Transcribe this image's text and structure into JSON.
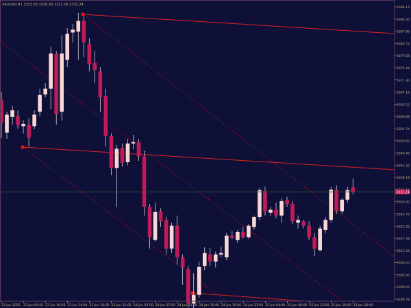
{
  "window": {
    "header_text": "XAUUSD,H1  3333.83 3336.93 3331.26 3332.24"
  },
  "chart_data": {
    "type": "candlestick",
    "title": "",
    "symbol": "XAUUSD",
    "timeframe": "H1",
    "ohlc_header": {
      "open": 3333.83,
      "high": 3336.93,
      "low": 3331.26,
      "close": 3332.24
    },
    "current_price_label": "3332.24",
    "ylim": [
      3294.3,
      3398.3
    ],
    "price_ticks": [
      "3396.14",
      "3392.00",
      "3387.86",
      "3383.72",
      "3379.58",
      "3375.44",
      "3371.30",
      "3367.16",
      "3363.02",
      "3358.88",
      "3354.74",
      "3350.60",
      "3346.46",
      "3342.32",
      "3338.18",
      "3334.04",
      "3329.90",
      "3325.76",
      "3321.62",
      "3317.48",
      "3313.34",
      "3309.20",
      "3305.06",
      "3300.92",
      "3296.78"
    ],
    "time_ticks": [
      "23 Jun 2025",
      "23 Jun 06:00",
      "23 Jun 10:00",
      "23 Jun 14:00",
      "23 Jun 18:00",
      "23 Jun 22:00",
      "24 Jun 03:00",
      "24 Jun 07:00",
      "24 Jun 11:00",
      "24 Jun 15:00",
      "24 Jun 19:00",
      "24 Jun 23:00",
      "25 Jun 04:00",
      "25 Jun 08:00",
      "25 Jun 12:00",
      "25 Jun 16:00",
      "25 Jun 20:00"
    ],
    "candles": [
      {
        "o": 3364.2,
        "h": 3367.0,
        "l": 3350.8,
        "c": 3356.0
      },
      {
        "o": 3352.8,
        "h": 3360.0,
        "l": 3350.6,
        "c": 3359.0
      },
      {
        "o": 3358.2,
        "h": 3362.0,
        "l": 3355.5,
        "c": 3360.5
      },
      {
        "o": 3358.5,
        "h": 3360.5,
        "l": 3354.2,
        "c": 3355.5
      },
      {
        "o": 3355.0,
        "h": 3357.0,
        "l": 3352.5,
        "c": 3355.8
      },
      {
        "o": 3355.5,
        "h": 3357.8,
        "l": 3348.0,
        "c": 3351.0
      },
      {
        "o": 3355.0,
        "h": 3360.5,
        "l": 3354.0,
        "c": 3359.0
      },
      {
        "o": 3360.0,
        "h": 3368.0,
        "l": 3358.5,
        "c": 3365.8
      },
      {
        "o": 3366.0,
        "h": 3370.0,
        "l": 3365.0,
        "c": 3368.0
      },
      {
        "o": 3368.0,
        "h": 3382.5,
        "l": 3361.0,
        "c": 3380.2
      },
      {
        "o": 3380.0,
        "h": 3381.0,
        "l": 3355.5,
        "c": 3359.2
      },
      {
        "o": 3360.0,
        "h": 3386.5,
        "l": 3357.0,
        "c": 3380.2
      },
      {
        "o": 3378.0,
        "h": 3389.0,
        "l": 3375.5,
        "c": 3387.0
      },
      {
        "o": 3387.5,
        "h": 3390.5,
        "l": 3384.0,
        "c": 3388.5
      },
      {
        "o": 3387.8,
        "h": 3394.3,
        "l": 3378.0,
        "c": 3391.5
      },
      {
        "o": 3391.5,
        "h": 3393.0,
        "l": 3379.0,
        "c": 3384.0
      },
      {
        "o": 3383.5,
        "h": 3385.5,
        "l": 3374.0,
        "c": 3376.5
      },
      {
        "o": 3377.0,
        "h": 3381.0,
        "l": 3370.0,
        "c": 3374.5
      },
      {
        "o": 3374.0,
        "h": 3375.5,
        "l": 3360.0,
        "c": 3365.0
      },
      {
        "o": 3365.5,
        "h": 3368.0,
        "l": 3348.0,
        "c": 3351.5
      },
      {
        "o": 3351.5,
        "h": 3352.5,
        "l": 3338.0,
        "c": 3340.5
      },
      {
        "o": 3340.5,
        "h": 3348.5,
        "l": 3327.0,
        "c": 3347.2
      },
      {
        "o": 3347.5,
        "h": 3349.0,
        "l": 3341.0,
        "c": 3342.3
      },
      {
        "o": 3342.5,
        "h": 3350.6,
        "l": 3341.5,
        "c": 3349.0
      },
      {
        "o": 3349.0,
        "h": 3352.0,
        "l": 3347.0,
        "c": 3349.5
      },
      {
        "o": 3349.5,
        "h": 3350.5,
        "l": 3343.0,
        "c": 3344.5
      },
      {
        "o": 3344.5,
        "h": 3346.5,
        "l": 3324.0,
        "c": 3327.0
      },
      {
        "o": 3327.0,
        "h": 3328.0,
        "l": 3312.5,
        "c": 3316.5
      },
      {
        "o": 3315.5,
        "h": 3328.5,
        "l": 3315.0,
        "c": 3325.2
      },
      {
        "o": 3325.5,
        "h": 3326.5,
        "l": 3320.0,
        "c": 3322.0
      },
      {
        "o": 3322.5,
        "h": 3323.5,
        "l": 3310.5,
        "c": 3312.5
      },
      {
        "o": 3312.5,
        "h": 3321.5,
        "l": 3311.0,
        "c": 3320.5
      },
      {
        "o": 3320.5,
        "h": 3324.0,
        "l": 3307.0,
        "c": 3309.5
      },
      {
        "o": 3309.5,
        "h": 3310.5,
        "l": 3300.0,
        "c": 3306.0
      },
      {
        "o": 3305.5,
        "h": 3306.5,
        "l": 3292.0,
        "c": 3293.5
      },
      {
        "o": 3293.5,
        "h": 3304.0,
        "l": 3291.5,
        "c": 3296.5
      },
      {
        "o": 3296.5,
        "h": 3308.0,
        "l": 3295.5,
        "c": 3306.2
      },
      {
        "o": 3306.5,
        "h": 3313.0,
        "l": 3305.0,
        "c": 3311.0
      },
      {
        "o": 3310.5,
        "h": 3312.8,
        "l": 3306.5,
        "c": 3308.0
      },
      {
        "o": 3308.0,
        "h": 3311.5,
        "l": 3306.0,
        "c": 3310.5
      },
      {
        "o": 3310.5,
        "h": 3313.2,
        "l": 3309.5,
        "c": 3311.0
      },
      {
        "o": 3309.5,
        "h": 3318.0,
        "l": 3308.5,
        "c": 3317.0
      },
      {
        "o": 3317.0,
        "h": 3318.6,
        "l": 3315.8,
        "c": 3316.3
      },
      {
        "o": 3315.5,
        "h": 3319.0,
        "l": 3314.5,
        "c": 3318.3
      },
      {
        "o": 3318.3,
        "h": 3320.0,
        "l": 3316.0,
        "c": 3316.5
      },
      {
        "o": 3316.5,
        "h": 3321.0,
        "l": 3316.0,
        "c": 3320.5
      },
      {
        "o": 3320.0,
        "h": 3324.0,
        "l": 3319.0,
        "c": 3323.5
      },
      {
        "o": 3323.5,
        "h": 3333.5,
        "l": 3322.5,
        "c": 3332.8
      },
      {
        "o": 3332.5,
        "h": 3334.0,
        "l": 3324.0,
        "c": 3325.5
      },
      {
        "o": 3325.0,
        "h": 3327.0,
        "l": 3324.0,
        "c": 3326.0
      },
      {
        "o": 3326.0,
        "h": 3328.5,
        "l": 3323.0,
        "c": 3324.0
      },
      {
        "o": 3324.0,
        "h": 3330.0,
        "l": 3321.5,
        "c": 3329.0
      },
      {
        "o": 3329.5,
        "h": 3330.5,
        "l": 3327.0,
        "c": 3328.0
      },
      {
        "o": 3328.0,
        "h": 3329.0,
        "l": 3321.0,
        "c": 3322.0
      },
      {
        "o": 3321.5,
        "h": 3324.0,
        "l": 3319.5,
        "c": 3322.5
      },
      {
        "o": 3322.0,
        "h": 3322.5,
        "l": 3319.5,
        "c": 3320.5
      },
      {
        "o": 3320.5,
        "h": 3322.0,
        "l": 3315.5,
        "c": 3316.5
      },
      {
        "o": 3316.5,
        "h": 3318.0,
        "l": 3310.0,
        "c": 3312.5
      },
      {
        "o": 3312.0,
        "h": 3320.5,
        "l": 3311.5,
        "c": 3319.5
      },
      {
        "o": 3319.0,
        "h": 3323.5,
        "l": 3318.0,
        "c": 3322.5
      },
      {
        "o": 3322.5,
        "h": 3334.0,
        "l": 3321.5,
        "c": 3333.0
      },
      {
        "o": 3333.0,
        "h": 3334.5,
        "l": 3324.5,
        "c": 3325.5
      },
      {
        "o": 3325.5,
        "h": 3330.0,
        "l": 3324.5,
        "c": 3329.5
      },
      {
        "o": 3329.5,
        "h": 3334.0,
        "l": 3328.5,
        "c": 3332.8
      },
      {
        "o": 3333.8,
        "h": 3336.9,
        "l": 3331.3,
        "c": 3332.2
      }
    ],
    "colors": {
      "background": "#0f1038",
      "bull_candle": "#f8d7d5",
      "bear_candle": "#c21a58",
      "wick": "#d8d0d8",
      "trendline": "#e02020",
      "dotted_line": "#b01028",
      "anchor_point": "#ff1010",
      "axis_text": "#c9b37a",
      "header_text": "#c9b37a",
      "price_line": "#2c4d35",
      "price_label_bg": "#c21a58",
      "price_label_text": "#ffffff",
      "border": "#5a3a5a"
    }
  }
}
